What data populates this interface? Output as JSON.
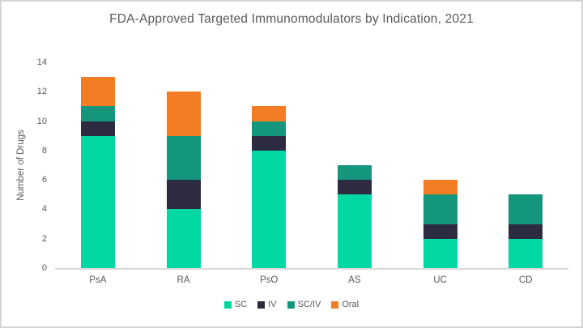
{
  "chart_data": {
    "type": "bar",
    "stacked": true,
    "title": "FDA-Approved Targeted Immunomodulators by Indication, 2021",
    "ylabel": "Number of Drugs",
    "xlabel": "",
    "categories": [
      "PsA",
      "RA",
      "PsO",
      "AS",
      "UC",
      "CD"
    ],
    "series": [
      {
        "name": "SC",
        "color": "#02d9a2",
        "values": [
          9,
          4,
          8,
          5,
          2,
          2
        ]
      },
      {
        "name": "IV",
        "color": "#2d2b40",
        "values": [
          1,
          2,
          1,
          1,
          1,
          1
        ]
      },
      {
        "name": "SC/IV",
        "color": "#14967d",
        "values": [
          1,
          3,
          1,
          1,
          2,
          2
        ]
      },
      {
        "name": "Oral",
        "color": "#f27d24",
        "values": [
          2,
          3,
          1,
          0,
          1,
          0
        ]
      }
    ],
    "ylim": [
      0,
      14
    ],
    "yticks": [
      0,
      2,
      4,
      6,
      8,
      10,
      12,
      14
    ],
    "grid": false,
    "legend_position": "bottom"
  },
  "styles": {
    "text_color": "#595959",
    "axis_line_color": "#d9d9d9",
    "frame_border_color": "#d6d6d6",
    "background": "#ffffff"
  }
}
